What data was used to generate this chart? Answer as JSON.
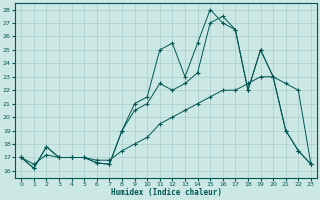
{
  "xlabel": "Humidex (Indice chaleur)",
  "bg_color": "#cce8e4",
  "grid_color": "#aacccc",
  "line_color": "#005555",
  "xlim": [
    -0.5,
    23.5
  ],
  "ylim": [
    15.5,
    28.5
  ],
  "xticks": [
    0,
    1,
    2,
    3,
    4,
    5,
    6,
    7,
    8,
    9,
    10,
    11,
    12,
    13,
    14,
    15,
    16,
    17,
    18,
    19,
    20,
    21,
    22,
    23
  ],
  "yticks": [
    16,
    17,
    18,
    19,
    20,
    21,
    22,
    23,
    24,
    25,
    26,
    27,
    28
  ],
  "line1_x": [
    0,
    1,
    2,
    3,
    4,
    5,
    6,
    7,
    8,
    9,
    10,
    11,
    12,
    13,
    14,
    15,
    16,
    17,
    18,
    19,
    20,
    21,
    22,
    23
  ],
  "line1_y": [
    17,
    16.2,
    17.8,
    17.0,
    17.0,
    17.0,
    16.6,
    16.5,
    19.0,
    21.0,
    21.5,
    25.0,
    25.5,
    23.0,
    25.5,
    28.0,
    27.0,
    26.5,
    22.0,
    25.0,
    23.0,
    19.0,
    17.5,
    16.5
  ],
  "line2_x": [
    0,
    1,
    2,
    3,
    4,
    5,
    6,
    7,
    8,
    9,
    10,
    11,
    12,
    13,
    14,
    15,
    16,
    17,
    18,
    19,
    20,
    21,
    22,
    23
  ],
  "line2_y": [
    17,
    16.2,
    17.8,
    17.0,
    17.0,
    17.0,
    16.6,
    16.5,
    19.0,
    20.5,
    21.0,
    22.5,
    22.0,
    22.5,
    23.3,
    27.0,
    27.5,
    26.5,
    22.0,
    25.0,
    23.0,
    19.0,
    17.5,
    16.5
  ],
  "line3_x": [
    0,
    1,
    2,
    3,
    4,
    5,
    6,
    7,
    8,
    9,
    10,
    11,
    12,
    13,
    14,
    15,
    16,
    17,
    18,
    19,
    20,
    21,
    22,
    23
  ],
  "line3_y": [
    17,
    16.5,
    17.2,
    17.0,
    17.0,
    17.0,
    16.8,
    16.8,
    17.5,
    18.0,
    18.5,
    19.5,
    20.0,
    20.5,
    21.0,
    21.5,
    22.0,
    22.0,
    22.5,
    23.0,
    23.0,
    22.5,
    22.0,
    16.5
  ]
}
